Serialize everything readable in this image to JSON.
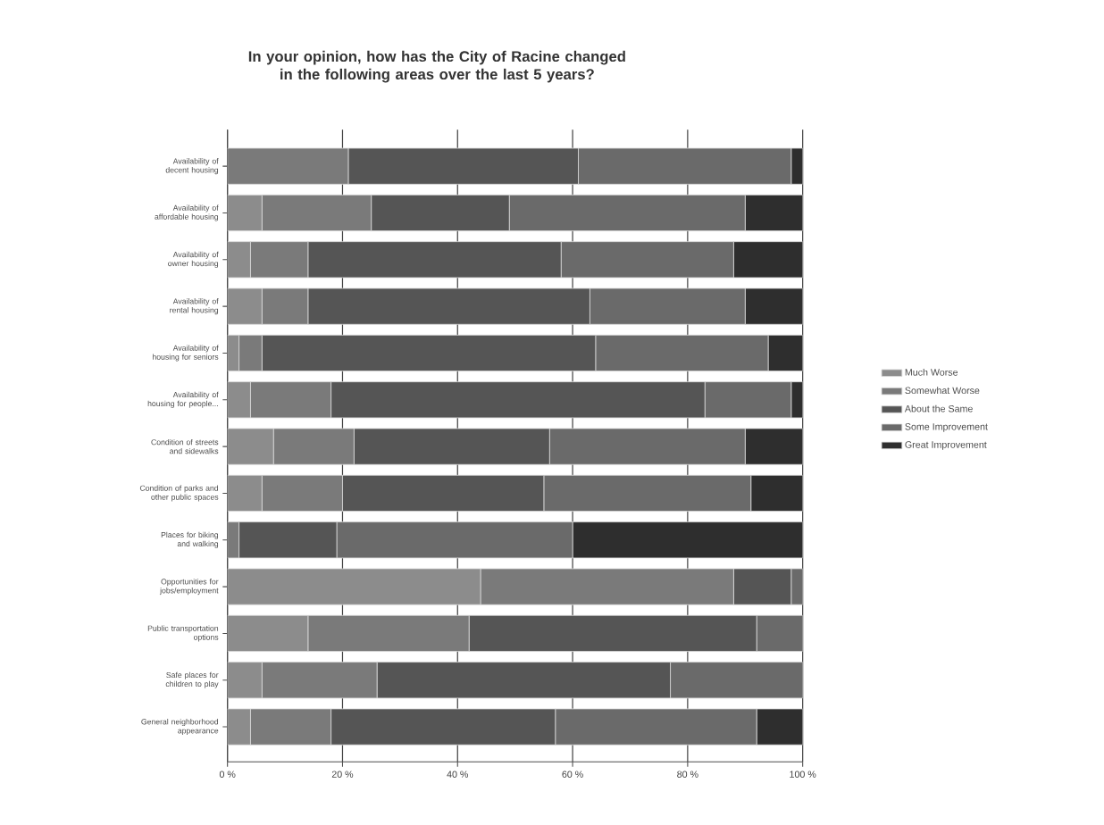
{
  "chart_data": {
    "type": "bar",
    "orientation": "horizontal",
    "stacked": true,
    "title": "In your opinion, how has the City of Racine changed in the following areas over the last 5 years?",
    "categories": [
      "Availability of decent housing",
      "Availability of affordable housing",
      "Availability of owner housing",
      "Availability of rental housing",
      "Availability of housing for seniors",
      "Availability of housing for people...",
      "Condition of streets and sidewalks",
      "Condition of parks and other public spaces",
      "Places for biking and walking",
      "Opportunities for jobs/employment",
      "Public transportation options",
      "Safe places for children to play",
      "General neighborhood appearance"
    ],
    "series": [
      {
        "name": "Much Worse",
        "color": "#8c8c8c",
        "values": [
          0,
          6,
          4,
          6,
          2,
          4,
          8,
          6,
          0,
          44,
          14,
          6,
          4
        ]
      },
      {
        "name": "Somewhat Worse",
        "color": "#7a7a7a",
        "values": [
          21,
          19,
          10,
          8,
          4,
          14,
          14,
          14,
          2,
          44,
          28,
          20,
          14
        ]
      },
      {
        "name": "About the Same",
        "color": "#555555",
        "values": [
          40,
          24,
          44,
          49,
          58,
          65,
          34,
          35,
          17,
          10,
          50,
          51,
          39
        ]
      },
      {
        "name": "Some Improvement",
        "color": "#6a6a6a",
        "values": [
          37,
          41,
          30,
          27,
          30,
          15,
          34,
          36,
          41,
          2,
          8,
          23,
          35
        ]
      },
      {
        "name": "Great Improvement",
        "color": "#2e2e2e",
        "values": [
          2,
          10,
          12,
          10,
          6,
          2,
          10,
          9,
          40,
          0,
          0,
          0,
          8
        ]
      }
    ],
    "xlim": [
      0,
      100
    ],
    "xticks": [
      {
        "value": 0,
        "label": "0 %"
      },
      {
        "value": 20,
        "label": "20 %"
      },
      {
        "value": 40,
        "label": "40 %"
      },
      {
        "value": 60,
        "label": "60 %"
      },
      {
        "value": 80,
        "label": "80 %"
      },
      {
        "value": 100,
        "label": "100 %"
      }
    ],
    "grid": "x",
    "legend": "right"
  }
}
